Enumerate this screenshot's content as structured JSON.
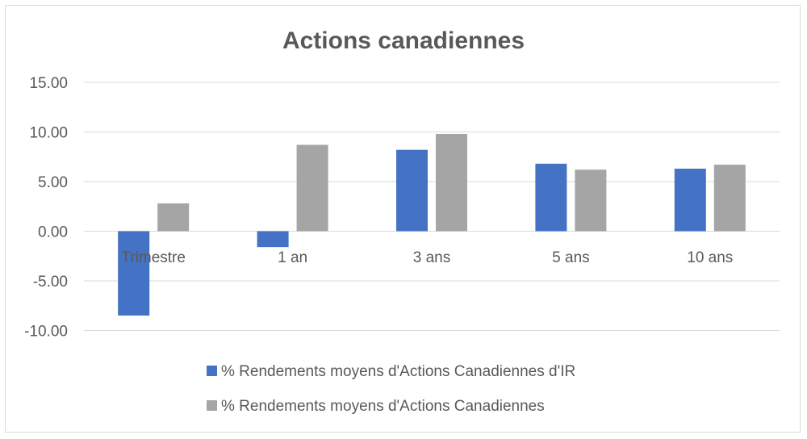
{
  "chart_data": {
    "type": "bar",
    "title": "Actions canadiennes",
    "categories": [
      "Trimestre",
      "1 an",
      "3 ans",
      "5 ans",
      "10 ans"
    ],
    "series": [
      {
        "name": "% Rendements moyens d'Actions Canadiennes d'IR",
        "color": "#4472c4",
        "values": [
          -8.5,
          -1.6,
          8.2,
          6.8,
          6.3
        ]
      },
      {
        "name": "% Rendements moyens d'Actions Canadiennes",
        "color": "#a5a5a5",
        "values": [
          2.8,
          8.7,
          9.8,
          6.2,
          6.7
        ]
      }
    ],
    "yticks": [
      "15.00",
      "10.00",
      "5.00",
      "0.00",
      "-5.00",
      "-10.00"
    ],
    "ylim": [
      -10,
      15
    ],
    "grid": true,
    "legend_position": "bottom"
  }
}
